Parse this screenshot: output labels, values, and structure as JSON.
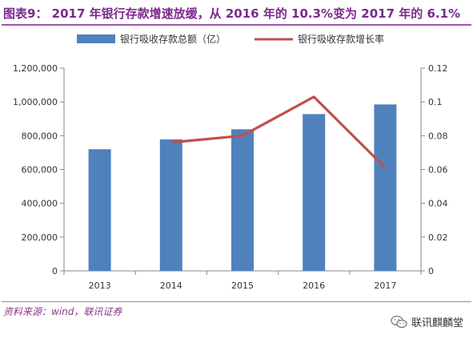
{
  "header": {
    "title": "图表9： 2017 年银行存款增速放缓，从 2016 年的 10.3%变为 2017 年的 6.1%"
  },
  "footer": {
    "source": "资料来源：wind，联讯证券",
    "watermark": "联讯麒麟堂",
    "watermark_icon": "wechat-icon"
  },
  "colors": {
    "bar": "#4f81bd",
    "line": "#c0504d",
    "title": "#7b2a8c"
  },
  "chart_data": {
    "type": "bar+line",
    "categories": [
      "2013",
      "2014",
      "2015",
      "2016",
      "2017"
    ],
    "series": [
      {
        "name": "银行吸收存款总额（亿）",
        "type": "bar",
        "axis": "left",
        "values": [
          720000,
          778000,
          838000,
          928000,
          985000
        ]
      },
      {
        "name": "银行吸收存款增长率",
        "type": "line",
        "axis": "right",
        "values": [
          null,
          0.076,
          0.08,
          0.103,
          0.061
        ]
      }
    ],
    "left_axis": {
      "min": 0,
      "max": 1200000,
      "step": 200000,
      "tick_labels": [
        "0",
        "200,000",
        "400,000",
        "600,000",
        "800,000",
        "1,000,000",
        "1,200,000"
      ]
    },
    "right_axis": {
      "min": 0,
      "max": 0.12,
      "step": 0.02,
      "tick_labels": [
        "0",
        "0.02",
        "0.04",
        "0.06",
        "0.08",
        "0.1",
        "0.12"
      ]
    },
    "grid": false,
    "legend_position": "top"
  }
}
